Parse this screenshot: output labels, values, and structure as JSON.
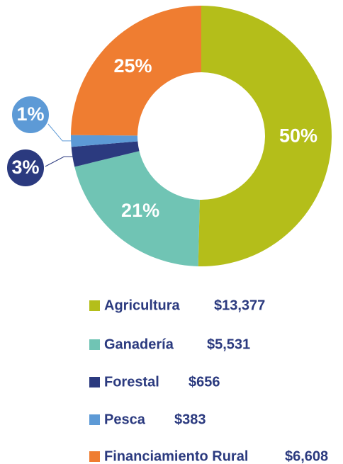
{
  "chart_data": {
    "type": "donut",
    "categories": [
      "Agricultura",
      "Ganadería",
      "Forestal",
      "Pesca",
      "Financiamiento Rural"
    ],
    "values": [
      13377,
      5531,
      656,
      383,
      6608
    ],
    "value_labels": [
      "$13,377",
      "$5,531",
      "$656",
      "$383",
      "$6,608"
    ],
    "shares": [
      50,
      21,
      3,
      1,
      25
    ],
    "share_labels": [
      "50%",
      "21%",
      "3%",
      "1%",
      "25%"
    ],
    "colors": [
      "#b4be1a",
      "#70c4b4",
      "#2b3a7f",
      "#5d9ad6",
      "#ef7d31"
    ]
  }
}
